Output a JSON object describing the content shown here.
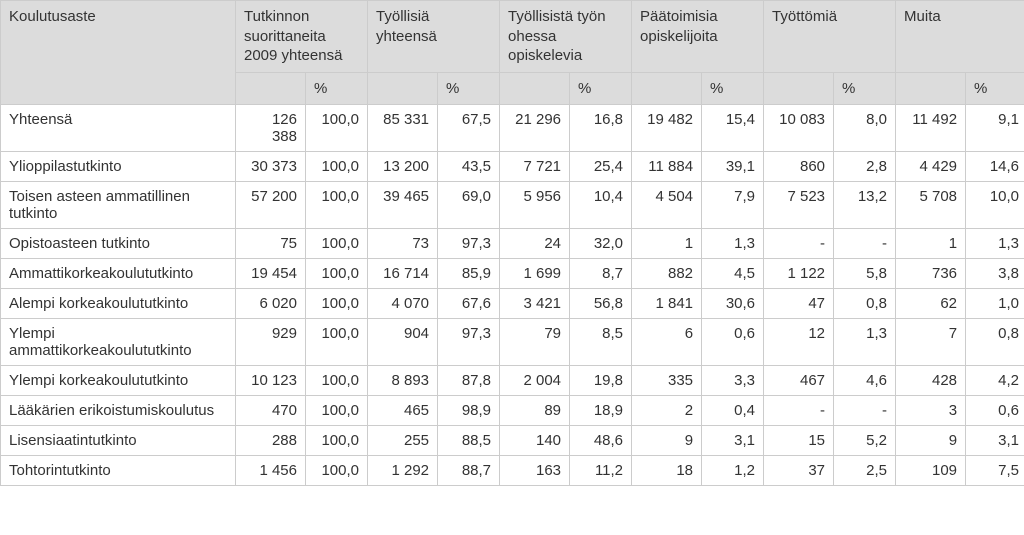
{
  "columns": {
    "rowheader": "Koulutusaste",
    "groups": [
      {
        "label": "Tutkinnon suorittaneita 2009 yhteensä"
      },
      {
        "label": "Työllisiä yhteensä"
      },
      {
        "label": "Työllisistä työn ohessa opiskelevia"
      },
      {
        "label": "Päätoimisia opiskelijoita"
      },
      {
        "label": "Työttömiä"
      },
      {
        "label": "Muita"
      }
    ],
    "pct": "%"
  },
  "rows": [
    {
      "label": "Yhteensä",
      "v": [
        "126 388",
        "100,0",
        "85 331",
        "67,5",
        "21 296",
        "16,8",
        "19 482",
        "15,4",
        "10 083",
        "8,0",
        "11 492",
        "9,1"
      ]
    },
    {
      "label": "Ylioppilastutkinto",
      "v": [
        "30 373",
        "100,0",
        "13 200",
        "43,5",
        "7 721",
        "25,4",
        "11 884",
        "39,1",
        "860",
        "2,8",
        "4 429",
        "14,6"
      ]
    },
    {
      "label": "Toisen asteen ammatillinen tutkinto",
      "v": [
        "57 200",
        "100,0",
        "39 465",
        "69,0",
        "5 956",
        "10,4",
        "4 504",
        "7,9",
        "7 523",
        "13,2",
        "5 708",
        "10,0"
      ]
    },
    {
      "label": "Opistoasteen tutkinto",
      "v": [
        "75",
        "100,0",
        "73",
        "97,3",
        "24",
        "32,0",
        "1",
        "1,3",
        "-",
        "-",
        "1",
        "1,3"
      ]
    },
    {
      "label": "Ammattikorkeakoulututkinto",
      "v": [
        "19 454",
        "100,0",
        "16 714",
        "85,9",
        "1 699",
        "8,7",
        "882",
        "4,5",
        "1 122",
        "5,8",
        "736",
        "3,8"
      ]
    },
    {
      "label": "Alempi korkeakoulututkinto",
      "v": [
        "6 020",
        "100,0",
        "4 070",
        "67,6",
        "3 421",
        "56,8",
        "1 841",
        "30,6",
        "47",
        "0,8",
        "62",
        "1,0"
      ]
    },
    {
      "label": "Ylempi ammattikorkeakoulututkinto",
      "v": [
        "929",
        "100,0",
        "904",
        "97,3",
        "79",
        "8,5",
        "6",
        "0,6",
        "12",
        "1,3",
        "7",
        "0,8"
      ]
    },
    {
      "label": "Ylempi korkeakoulututkinto",
      "v": [
        "10 123",
        "100,0",
        "8 893",
        "87,8",
        "2 004",
        "19,8",
        "335",
        "3,3",
        "467",
        "4,6",
        "428",
        "4,2"
      ]
    },
    {
      "label": "Lääkärien erikoistumiskoulutus",
      "v": [
        "470",
        "100,0",
        "465",
        "98,9",
        "89",
        "18,9",
        "2",
        "0,4",
        "-",
        "-",
        "3",
        "0,6"
      ]
    },
    {
      "label": "Lisensiaatintutkinto",
      "v": [
        "288",
        "100,0",
        "255",
        "88,5",
        "140",
        "48,6",
        "9",
        "3,1",
        "15",
        "5,2",
        "9",
        "3,1"
      ]
    },
    {
      "label": "Tohtorintutkinto",
      "v": [
        "1 456",
        "100,0",
        "1 292",
        "88,7",
        "163",
        "11,2",
        "18",
        "1,2",
        "37",
        "2,5",
        "109",
        "7,5"
      ]
    }
  ]
}
